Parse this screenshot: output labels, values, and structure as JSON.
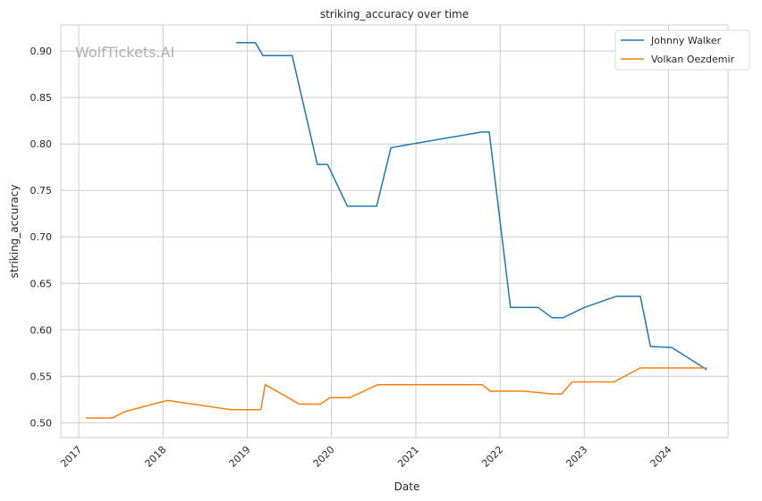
{
  "chart_data": {
    "type": "line",
    "title": "striking_accuracy over time",
    "xlabel": "Date",
    "ylabel": "striking_accuracy",
    "watermark": "WolfTickets.AI",
    "x_axis_type": "date",
    "xlim": [
      "2016-10-15",
      "2024-09-15"
    ],
    "ylim": [
      0.484,
      0.928
    ],
    "x_ticks": [
      "2017",
      "2018",
      "2019",
      "2020",
      "2021",
      "2022",
      "2023",
      "2024"
    ],
    "x_tick_rotation": 45,
    "y_ticks": [
      0.5,
      0.55,
      0.6,
      0.65,
      0.7,
      0.75,
      0.8,
      0.85,
      0.9
    ],
    "y_tick_labels": [
      "0.50",
      "0.55",
      "0.60",
      "0.65",
      "0.70",
      "0.75",
      "0.80",
      "0.85",
      "0.90"
    ],
    "grid": true,
    "legend_position": "top-right",
    "series": [
      {
        "name": "Johnny Walker",
        "color": "#1f77b4",
        "points": [
          [
            "2018-11-15",
            0.909
          ],
          [
            "2019-02-05",
            0.909
          ],
          [
            "2019-03-10",
            0.895
          ],
          [
            "2019-07-15",
            0.895
          ],
          [
            "2019-11-01",
            0.778
          ],
          [
            "2019-12-15",
            0.778
          ],
          [
            "2020-03-10",
            0.733
          ],
          [
            "2020-07-15",
            0.733
          ],
          [
            "2020-09-15",
            0.796
          ],
          [
            "2021-10-15",
            0.813
          ],
          [
            "2021-11-15",
            0.813
          ],
          [
            "2022-02-15",
            0.624
          ],
          [
            "2022-06-15",
            0.624
          ],
          [
            "2022-08-15",
            0.613
          ],
          [
            "2022-10-01",
            0.613
          ],
          [
            "2023-01-01",
            0.624
          ],
          [
            "2023-05-20",
            0.636
          ],
          [
            "2023-09-01",
            0.636
          ],
          [
            "2023-10-15",
            0.582
          ],
          [
            "2024-01-15",
            0.581
          ],
          [
            "2024-06-15",
            0.557
          ]
        ]
      },
      {
        "name": "Volkan Oezdemir",
        "color": "#ff7f0e",
        "points": [
          [
            "2017-02-01",
            0.505
          ],
          [
            "2017-05-25",
            0.505
          ],
          [
            "2017-07-20",
            0.512
          ],
          [
            "2018-01-20",
            0.524
          ],
          [
            "2018-10-25",
            0.514
          ],
          [
            "2019-03-01",
            0.514
          ],
          [
            "2019-03-20",
            0.541
          ],
          [
            "2019-08-15",
            0.52
          ],
          [
            "2019-11-15",
            0.52
          ],
          [
            "2019-12-25",
            0.527
          ],
          [
            "2020-03-20",
            0.527
          ],
          [
            "2020-07-20",
            0.541
          ],
          [
            "2021-10-15",
            0.541
          ],
          [
            "2021-11-20",
            0.534
          ],
          [
            "2022-04-15",
            0.534
          ],
          [
            "2022-08-15",
            0.531
          ],
          [
            "2022-09-25",
            0.531
          ],
          [
            "2022-11-10",
            0.544
          ],
          [
            "2023-05-10",
            0.544
          ],
          [
            "2023-09-01",
            0.559
          ],
          [
            "2024-01-01",
            0.559
          ],
          [
            "2024-06-15",
            0.559
          ]
        ]
      }
    ]
  }
}
